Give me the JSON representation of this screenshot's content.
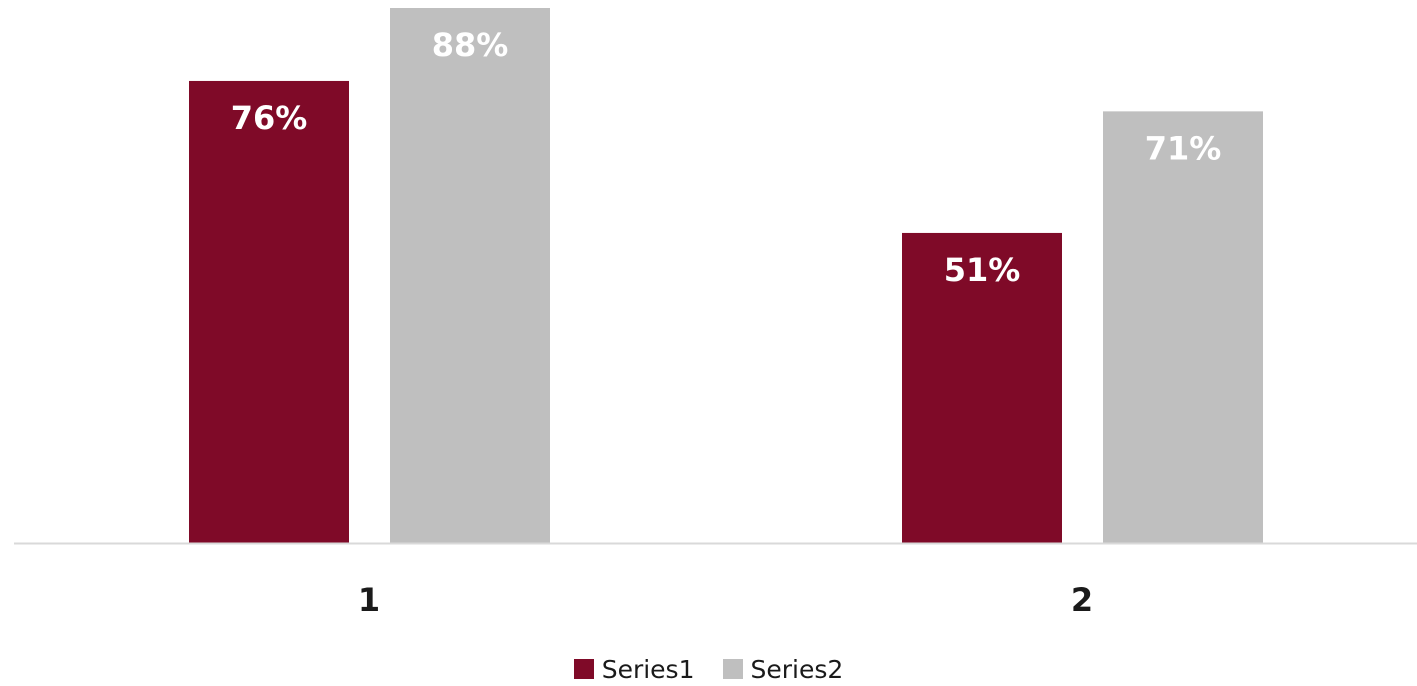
{
  "chart_data": {
    "type": "bar",
    "categories": [
      "1",
      "2"
    ],
    "series": [
      {
        "name": "Series1",
        "color": "#7f0a28",
        "values": [
          76,
          51
        ],
        "labels": [
          "76%",
          "51%"
        ]
      },
      {
        "name": "Series2",
        "color": "#bfbfbf",
        "values": [
          88,
          71
        ],
        "labels": [
          "88%",
          "71%"
        ]
      }
    ],
    "ylim": [
      0,
      88
    ],
    "value_unit": "%",
    "gridlines": false,
    "y_axis_visible": false,
    "legend_position": "bottom",
    "baseline_color": "#d9d9d9",
    "data_label_color": "#ffffff",
    "category_label_color": "#1a1a1a"
  }
}
